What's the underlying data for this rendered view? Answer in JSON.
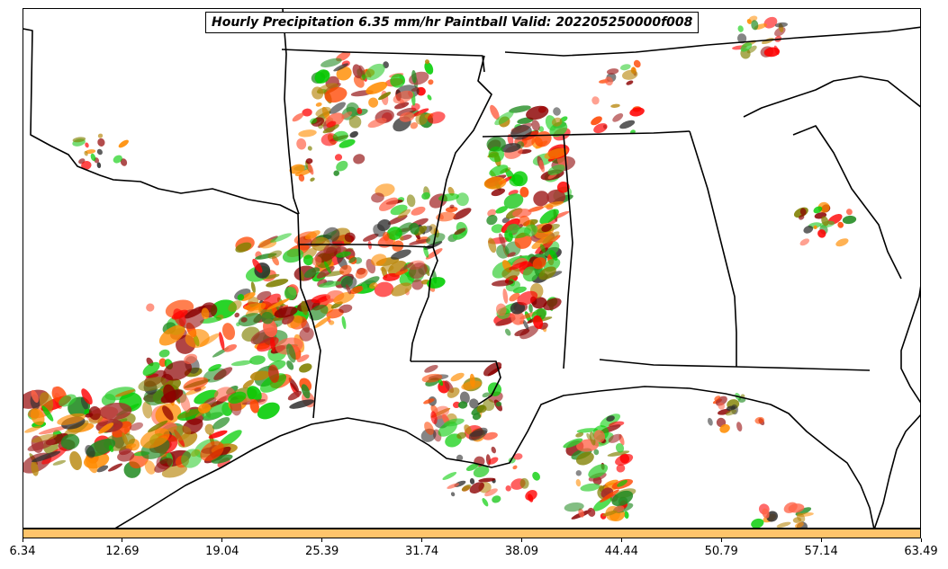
{
  "title": "Hourly Precipitation 6.35 mm/hr Paintball Valid: 202205250000f008",
  "colorbar": {
    "color": "#fec46b",
    "tick_labels": [
      "6.34",
      "12.69",
      "19.04",
      "25.39",
      "31.74",
      "38.09",
      "44.44",
      "50.79",
      "57.14",
      "63.49"
    ]
  },
  "colors": {
    "member_palette": [
      "#ff0000",
      "#8b0000",
      "#ff8c00",
      "#00cc00",
      "#808000",
      "#228b22",
      "#ff4500",
      "#2f2f2f",
      "#ff6347",
      "#32cd32",
      "#b8860b",
      "#a52a2a"
    ],
    "boundary": "#000000"
  },
  "map": {
    "region": "South-central and southeastern United States",
    "states_visible": [
      "Texas",
      "Oklahoma",
      "Arkansas",
      "Louisiana",
      "Mississippi",
      "Alabama",
      "Georgia",
      "Tennessee",
      "Kentucky"
    ]
  }
}
